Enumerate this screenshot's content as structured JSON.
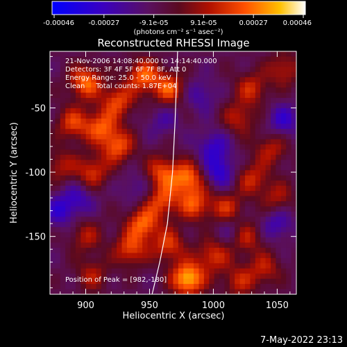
{
  "chart_data": {
    "type": "heatmap",
    "title": "Reconstructed RHESSI Image",
    "xlabel": "Heliocentric X (arcsec)",
    "ylabel": "Heliocentric Y (arcsec)",
    "xlim": [
      872,
      1065
    ],
    "ylim": [
      -195,
      -6
    ],
    "xticks": [
      900,
      950,
      1000,
      1050
    ],
    "yticks": [
      -50,
      -100,
      -150
    ],
    "colorbar": {
      "ticks": [
        "-0.00046",
        "-0.00027",
        "-9.1e-05",
        "9.1e-05",
        "0.00027",
        "0.00046"
      ],
      "units": "(photons cm⁻² s⁻¹ asec⁻²)",
      "range": [
        -0.00046,
        0.00046
      ]
    },
    "info_lines": [
      "21-Nov-2006 14:08:40.000 to 14:14:40.000",
      "Detectors: 3F 4F 5F 6F 7F 8F, Att 0",
      "Energy Range: 25.0 - 50.0 keV",
      "Clean     Total counts: 1.87E+04"
    ],
    "peak_label": "Position of Peak = [982,-180]",
    "peak": [
      982,
      -180
    ],
    "sources": [
      {
        "x": 900,
        "y": -30,
        "v": 0.00034
      },
      {
        "x": 925,
        "y": -45,
        "v": 0.00028
      },
      {
        "x": 945,
        "y": -25,
        "v": 0.00032
      },
      {
        "x": 965,
        "y": -35,
        "v": 0.0003
      },
      {
        "x": 890,
        "y": -62,
        "v": 0.00026
      },
      {
        "x": 912,
        "y": -65,
        "v": 0.00029
      },
      {
        "x": 925,
        "y": -80,
        "v": 0.0003
      },
      {
        "x": 905,
        "y": -100,
        "v": 0.00025
      },
      {
        "x": 880,
        "y": -95,
        "v": 0.00018
      },
      {
        "x": 1030,
        "y": -35,
        "v": 0.00022
      },
      {
        "x": 1020,
        "y": -58,
        "v": 0.0002
      },
      {
        "x": 1055,
        "y": -20,
        "v": 0.0002
      },
      {
        "x": 960,
        "y": -100,
        "v": 0.00028
      },
      {
        "x": 980,
        "y": -105,
        "v": 0.00034
      },
      {
        "x": 960,
        "y": -122,
        "v": 0.00027
      },
      {
        "x": 985,
        "y": -125,
        "v": 0.00028
      },
      {
        "x": 945,
        "y": -140,
        "v": 0.00033
      },
      {
        "x": 935,
        "y": -160,
        "v": 0.00028
      },
      {
        "x": 965,
        "y": -157,
        "v": 0.00026
      },
      {
        "x": 1010,
        "y": -128,
        "v": 0.00024
      },
      {
        "x": 1030,
        "y": -105,
        "v": 0.00022
      },
      {
        "x": 1045,
        "y": -82,
        "v": 0.0002
      },
      {
        "x": 1025,
        "y": -150,
        "v": 0.00024
      },
      {
        "x": 1050,
        "y": -120,
        "v": 0.00018
      },
      {
        "x": 1040,
        "y": -175,
        "v": 0.0002
      },
      {
        "x": 900,
        "y": -150,
        "v": 0.00018
      },
      {
        "x": 905,
        "y": -180,
        "v": 0.00018
      },
      {
        "x": 980,
        "y": -183,
        "v": 0.00046
      },
      {
        "x": 1000,
        "y": -165,
        "v": 0.00025
      },
      {
        "x": 1020,
        "y": -185,
        "v": 0.0002
      },
      {
        "x": 990,
        "y": -40,
        "v": -0.00015
      },
      {
        "x": 1000,
        "y": -80,
        "v": -0.0002
      },
      {
        "x": 1005,
        "y": -100,
        "v": -0.00024
      },
      {
        "x": 880,
        "y": -130,
        "v": -0.0002
      },
      {
        "x": 1055,
        "y": -60,
        "v": -0.0002
      },
      {
        "x": 940,
        "y": -112,
        "v": -0.00012
      },
      {
        "x": 1015,
        "y": -145,
        "v": -0.00015
      },
      {
        "x": 895,
        "y": -120,
        "v": -0.00016
      },
      {
        "x": 1050,
        "y": -140,
        "v": -0.00018
      },
      {
        "x": 960,
        "y": -60,
        "v": -0.00012
      }
    ],
    "limb": [
      [
        972,
        -6
      ],
      [
        970,
        -60
      ],
      [
        968,
        -100
      ],
      [
        964,
        -140
      ],
      [
        958,
        -170
      ],
      [
        952,
        -195
      ]
    ],
    "grid": false
  },
  "timestamp": "7-May-2022 23:13"
}
